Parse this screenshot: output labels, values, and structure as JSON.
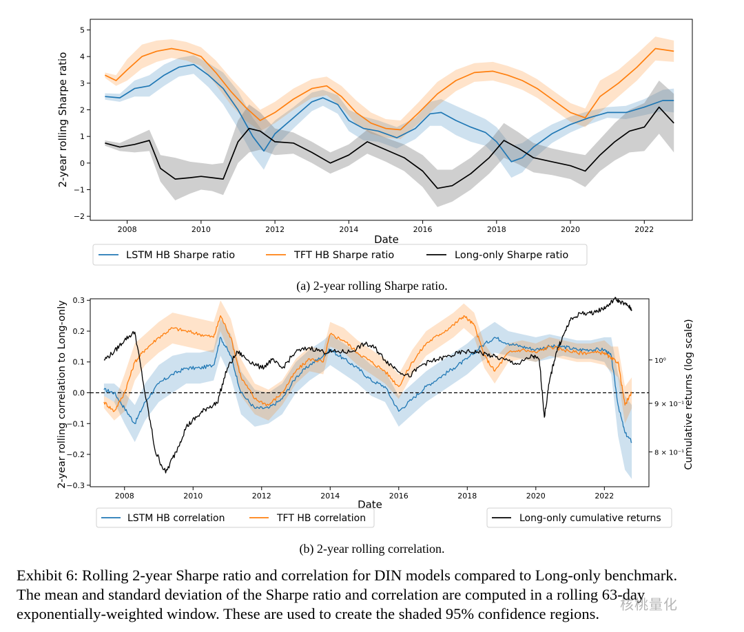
{
  "chart_data": [
    {
      "type": "line",
      "title": "",
      "subcaption": "(a) 2-year rolling Sharpe ratio.",
      "xlabel": "Date",
      "ylabel": "2-year rolling Sharpe ratio",
      "xlim": [
        2007.0,
        2023.3
      ],
      "ylim": [
        -2.15,
        5.4
      ],
      "xticks": [
        2008,
        2010,
        2012,
        2014,
        2016,
        2018,
        2020,
        2022
      ],
      "xtick_labels": [
        "2008",
        "2010",
        "2012",
        "2014",
        "2016",
        "2018",
        "2020",
        "2022"
      ],
      "yticks": [
        -2,
        -1,
        0,
        1,
        2,
        3,
        4,
        5
      ],
      "ytick_labels": [
        "−2",
        "−1",
        "0",
        "1",
        "2",
        "3",
        "4",
        "5"
      ],
      "legend_position": "below",
      "series": [
        {
          "name": "LSTM HB Sharpe ratio",
          "color": "#1f77b4",
          "x": [
            2007.4,
            2007.8,
            2008.2,
            2008.6,
            2009.0,
            2009.4,
            2009.8,
            2010.2,
            2010.6,
            2011.0,
            2011.4,
            2011.7,
            2012.0,
            2012.5,
            2013.0,
            2013.3,
            2013.7,
            2014.0,
            2014.4,
            2014.8,
            2015.3,
            2015.8,
            2016.2,
            2016.5,
            2016.9,
            2017.3,
            2017.7,
            2018.0,
            2018.4,
            2018.7,
            2019.0,
            2019.5,
            2020.0,
            2020.5,
            2021.0,
            2021.5,
            2022.0,
            2022.5,
            2022.8
          ],
          "values": [
            2.5,
            2.45,
            2.8,
            2.9,
            3.3,
            3.6,
            3.7,
            3.3,
            2.8,
            2.0,
            1.0,
            0.45,
            1.1,
            1.7,
            2.3,
            2.45,
            2.2,
            1.6,
            1.3,
            1.2,
            0.95,
            1.3,
            1.85,
            1.9,
            1.6,
            1.35,
            1.15,
            0.8,
            0.05,
            0.2,
            0.6,
            1.1,
            1.45,
            1.7,
            1.9,
            1.9,
            2.1,
            2.35,
            2.35
          ],
          "band_width": [
            0.12,
            0.15,
            0.3,
            0.4,
            0.4,
            0.35,
            0.35,
            0.45,
            0.6,
            0.7,
            0.7,
            0.7,
            0.5,
            0.4,
            0.35,
            0.3,
            0.35,
            0.4,
            0.45,
            0.4,
            0.4,
            0.4,
            0.45,
            0.5,
            0.55,
            0.55,
            0.5,
            0.55,
            0.6,
            0.55,
            0.45,
            0.35,
            0.3,
            0.25,
            0.2,
            0.25,
            0.3,
            0.4,
            0.45
          ]
        },
        {
          "name": "TFT HB Sharpe ratio",
          "color": "#ff7f0e",
          "x": [
            2007.4,
            2007.7,
            2008.0,
            2008.4,
            2008.8,
            2009.2,
            2009.6,
            2010.0,
            2010.4,
            2010.8,
            2011.2,
            2011.6,
            2012.0,
            2012.5,
            2013.0,
            2013.4,
            2013.8,
            2014.2,
            2014.6,
            2015.0,
            2015.4,
            2015.9,
            2016.4,
            2016.9,
            2017.4,
            2017.9,
            2018.3,
            2018.7,
            2019.1,
            2019.6,
            2020.0,
            2020.4,
            2020.8,
            2021.3,
            2021.8,
            2022.3,
            2022.8
          ],
          "values": [
            3.3,
            3.1,
            3.5,
            4.0,
            4.2,
            4.3,
            4.2,
            4.0,
            3.4,
            2.7,
            2.1,
            1.6,
            1.9,
            2.4,
            2.8,
            2.9,
            2.5,
            1.9,
            1.5,
            1.3,
            1.25,
            1.9,
            2.6,
            3.1,
            3.4,
            3.45,
            3.3,
            3.1,
            2.8,
            2.3,
            1.9,
            1.7,
            2.5,
            3.0,
            3.6,
            4.3,
            4.2
          ],
          "band_width": [
            0.1,
            0.2,
            0.4,
            0.45,
            0.4,
            0.35,
            0.35,
            0.35,
            0.45,
            0.5,
            0.5,
            0.4,
            0.4,
            0.4,
            0.35,
            0.35,
            0.4,
            0.45,
            0.4,
            0.35,
            0.35,
            0.4,
            0.45,
            0.4,
            0.35,
            0.35,
            0.35,
            0.35,
            0.35,
            0.35,
            0.35,
            0.35,
            0.6,
            0.5,
            0.5,
            0.45,
            0.4
          ]
        },
        {
          "name": "Long-only Sharpe ratio",
          "color": "#000000",
          "x": [
            2007.4,
            2007.8,
            2008.2,
            2008.6,
            2008.9,
            2009.3,
            2009.7,
            2010.0,
            2010.3,
            2010.6,
            2011.0,
            2011.3,
            2011.6,
            2012.0,
            2012.5,
            2013.0,
            2013.5,
            2014.0,
            2014.5,
            2015.0,
            2015.5,
            2016.0,
            2016.4,
            2016.8,
            2017.3,
            2017.8,
            2018.2,
            2018.6,
            2019.0,
            2019.5,
            2020.0,
            2020.4,
            2020.8,
            2021.2,
            2021.6,
            2022.0,
            2022.4,
            2022.8
          ],
          "values": [
            0.75,
            0.6,
            0.7,
            0.85,
            -0.2,
            -0.6,
            -0.55,
            -0.5,
            -0.55,
            -0.6,
            0.8,
            1.3,
            1.2,
            0.8,
            0.75,
            0.4,
            0.0,
            0.3,
            0.8,
            0.5,
            0.2,
            -0.3,
            -0.95,
            -0.85,
            -0.4,
            0.2,
            0.85,
            0.55,
            0.2,
            0.05,
            -0.1,
            -0.3,
            0.3,
            0.8,
            1.2,
            1.35,
            2.1,
            1.5
          ],
          "band_width": [
            0.1,
            0.15,
            0.3,
            0.4,
            0.5,
            0.8,
            0.6,
            0.5,
            0.5,
            0.6,
            0.8,
            0.9,
            0.7,
            0.5,
            0.4,
            0.4,
            0.4,
            0.4,
            0.45,
            0.45,
            0.5,
            0.6,
            0.7,
            0.6,
            0.6,
            0.6,
            0.65,
            0.6,
            0.55,
            0.5,
            0.5,
            0.6,
            0.6,
            0.7,
            0.8,
            0.9,
            1.0,
            1.1
          ]
        }
      ]
    },
    {
      "type": "line",
      "title": "",
      "subcaption": "(b) 2-year rolling correlation.",
      "xlabel": "Date",
      "ylabel": "2-year rolling correlation to Long-only",
      "ylabel_right": "Cumulative returns (log scale)",
      "xlim": [
        2007.0,
        2023.3
      ],
      "ylim": [
        -0.305,
        0.305
      ],
      "xticks": [
        2008,
        2010,
        2012,
        2014,
        2016,
        2018,
        2020,
        2022
      ],
      "xtick_labels": [
        "2008",
        "2010",
        "2012",
        "2014",
        "2016",
        "2018",
        "2020",
        "2022"
      ],
      "yticks": [
        -0.3,
        -0.2,
        -0.1,
        0.0,
        0.1,
        0.2,
        0.3
      ],
      "ytick_labels": [
        "−0.3",
        "−0.2",
        "−0.1",
        "0.0",
        "0.1",
        "0.2",
        "0.3"
      ],
      "right_axis_log": true,
      "right_ylim": [
        0.735,
        1.16
      ],
      "right_yticks": [
        0.8,
        0.9,
        1.0
      ],
      "right_ytick_labels": [
        "8 × 10⁻¹",
        "9 × 10⁻¹",
        "10⁰"
      ],
      "zero_line": true,
      "legend_left_position": "below-left",
      "legend_right_position": "below-right",
      "series": [
        {
          "name": "LSTM HB correlation",
          "color": "#1f77b4",
          "axis": "left",
          "x": [
            2007.4,
            2007.7,
            2008.0,
            2008.3,
            2008.6,
            2009.0,
            2009.4,
            2009.8,
            2010.2,
            2010.6,
            2010.8,
            2011.1,
            2011.4,
            2011.8,
            2012.2,
            2012.6,
            2013.0,
            2013.4,
            2013.8,
            2014.0,
            2014.4,
            2014.8,
            2015.2,
            2015.6,
            2016.0,
            2016.4,
            2016.8,
            2017.2,
            2017.6,
            2018.0,
            2018.4,
            2018.8,
            2019.2,
            2019.6,
            2020.0,
            2020.4,
            2020.8,
            2021.2,
            2021.6,
            2022.0,
            2022.2,
            2022.4,
            2022.6,
            2022.8
          ],
          "values": [
            0.01,
            0.0,
            -0.05,
            -0.1,
            -0.03,
            0.03,
            0.06,
            0.08,
            0.08,
            0.09,
            0.18,
            0.12,
            0.0,
            -0.05,
            -0.05,
            -0.02,
            0.05,
            0.09,
            0.12,
            0.14,
            0.11,
            0.08,
            0.04,
            0.02,
            -0.06,
            -0.02,
            0.02,
            0.05,
            0.08,
            0.11,
            0.15,
            0.18,
            0.16,
            0.15,
            0.14,
            0.15,
            0.15,
            0.14,
            0.14,
            0.14,
            0.12,
            -0.04,
            -0.13,
            -0.16
          ],
          "band_width": [
            0.02,
            0.03,
            0.05,
            0.06,
            0.06,
            0.06,
            0.06,
            0.05,
            0.05,
            0.05,
            0.06,
            0.07,
            0.07,
            0.06,
            0.05,
            0.05,
            0.05,
            0.05,
            0.05,
            0.05,
            0.05,
            0.05,
            0.05,
            0.05,
            0.05,
            0.05,
            0.05,
            0.05,
            0.05,
            0.05,
            0.05,
            0.05,
            0.04,
            0.04,
            0.04,
            0.04,
            0.03,
            0.03,
            0.03,
            0.04,
            0.06,
            0.1,
            0.12,
            0.12
          ]
        },
        {
          "name": "TFT HB correlation",
          "color": "#ff7f0e",
          "axis": "left",
          "x": [
            2007.4,
            2007.7,
            2008.0,
            2008.3,
            2008.6,
            2009.0,
            2009.4,
            2009.8,
            2010.2,
            2010.6,
            2010.8,
            2011.1,
            2011.4,
            2011.8,
            2012.2,
            2012.6,
            2013.0,
            2013.4,
            2013.8,
            2014.0,
            2014.4,
            2014.8,
            2015.2,
            2015.6,
            2016.0,
            2016.4,
            2016.8,
            2017.2,
            2017.6,
            2017.9,
            2018.2,
            2018.5,
            2018.8,
            2019.2,
            2019.6,
            2020.0,
            2020.4,
            2020.8,
            2021.2,
            2021.6,
            2022.0,
            2022.2,
            2022.4,
            2022.6,
            2022.8
          ],
          "values": [
            -0.03,
            -0.06,
            0.0,
            0.1,
            0.14,
            0.18,
            0.21,
            0.2,
            0.19,
            0.18,
            0.25,
            0.18,
            0.05,
            -0.02,
            -0.04,
            0.0,
            0.07,
            0.11,
            0.1,
            0.19,
            0.17,
            0.13,
            0.1,
            0.07,
            0.02,
            0.1,
            0.16,
            0.19,
            0.22,
            0.25,
            0.22,
            0.12,
            0.07,
            0.13,
            0.14,
            0.13,
            0.15,
            0.14,
            0.13,
            0.13,
            0.13,
            0.11,
            0.1,
            -0.04,
            0.0
          ],
          "band_width": [
            0.02,
            0.03,
            0.06,
            0.06,
            0.05,
            0.05,
            0.05,
            0.05,
            0.05,
            0.05,
            0.05,
            0.06,
            0.06,
            0.05,
            0.05,
            0.04,
            0.04,
            0.04,
            0.04,
            0.04,
            0.04,
            0.04,
            0.04,
            0.04,
            0.04,
            0.04,
            0.04,
            0.04,
            0.04,
            0.04,
            0.04,
            0.04,
            0.04,
            0.03,
            0.03,
            0.03,
            0.03,
            0.03,
            0.03,
            0.03,
            0.04,
            0.04,
            0.05,
            0.06,
            0.05
          ]
        },
        {
          "name": "Long-only cumulative returns",
          "color": "#000000",
          "axis": "right",
          "x": [
            2007.4,
            2007.7,
            2008.0,
            2008.3,
            2008.6,
            2008.9,
            2009.2,
            2009.5,
            2009.8,
            2010.1,
            2010.4,
            2010.7,
            2011.0,
            2011.3,
            2011.6,
            2012.0,
            2012.3,
            2012.6,
            2013.0,
            2013.4,
            2013.8,
            2014.2,
            2014.6,
            2015.0,
            2015.3,
            2015.6,
            2015.9,
            2016.3,
            2016.7,
            2017.1,
            2017.5,
            2017.9,
            2018.3,
            2018.7,
            2019.1,
            2019.5,
            2019.9,
            2020.1,
            2020.25,
            2020.4,
            2020.6,
            2020.8,
            2021.0,
            2021.3,
            2021.6,
            2021.9,
            2022.1,
            2022.3,
            2022.5,
            2022.7,
            2022.8
          ],
          "values": [
            1.0,
            1.02,
            1.05,
            1.07,
            0.92,
            0.8,
            0.76,
            0.8,
            0.85,
            0.87,
            0.89,
            0.9,
            0.98,
            1.02,
            1.0,
            0.98,
            1.0,
            0.98,
            1.02,
            1.03,
            1.02,
            1.02,
            1.02,
            1.04,
            1.03,
            1.0,
            0.98,
            0.96,
            0.99,
            1.0,
            1.01,
            1.02,
            1.02,
            1.01,
            1.0,
            0.99,
            1.01,
            1.0,
            0.87,
            0.95,
            1.02,
            1.06,
            1.1,
            1.12,
            1.12,
            1.13,
            1.14,
            1.16,
            1.15,
            1.14,
            1.13
          ]
        }
      ]
    }
  ],
  "captions": {
    "main": "Exhibit 6: Rolling 2-year Sharpe ratio and correlation for DIN models compared to Long-only benchmark.",
    "line2": "The mean and standard deviation of the Sharpe ratio and correlation are computed in a rolling 63-day",
    "line3": "exponentially-weighted window. These are used to create the shaded 95% confidence regions."
  },
  "watermark": "核桃量化"
}
